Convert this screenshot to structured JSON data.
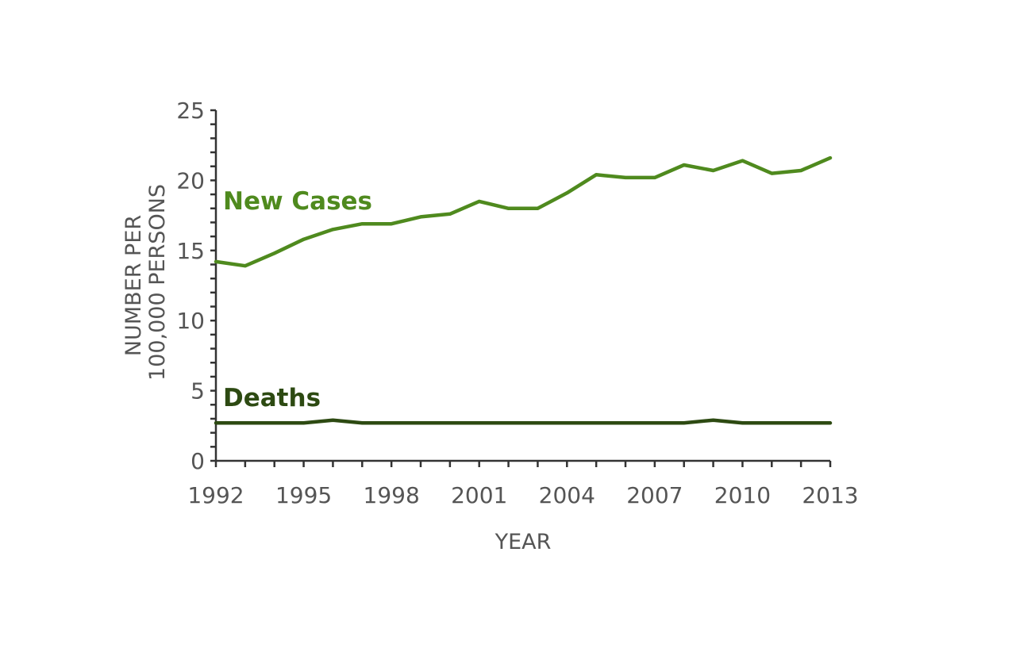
{
  "chart_data": {
    "type": "line",
    "title": "",
    "xlabel": "YEAR",
    "ylabel": [
      "NUMBER PER",
      "100,000 PERSONS"
    ],
    "x": [
      1992,
      1993,
      1994,
      1995,
      1996,
      1997,
      1998,
      1999,
      2000,
      2001,
      2002,
      2003,
      2004,
      2005,
      2006,
      2007,
      2008,
      2009,
      2010,
      2011,
      2012,
      2013
    ],
    "xticks": [
      1992,
      1995,
      1998,
      2001,
      2004,
      2007,
      2010,
      2013
    ],
    "yticks": [
      0,
      5,
      10,
      15,
      20,
      25
    ],
    "ylim": [
      0,
      25
    ],
    "xlim": [
      1992,
      2013
    ],
    "grid": false,
    "legend": "inline labels",
    "series": [
      {
        "name": "New Cases",
        "color": "#4f8a1e",
        "values": [
          14.2,
          13.9,
          14.8,
          15.8,
          16.5,
          16.9,
          16.9,
          17.4,
          17.6,
          18.5,
          18.0,
          18.0,
          19.1,
          20.4,
          20.2,
          20.2,
          21.1,
          20.7,
          21.4,
          20.5,
          20.7,
          21.6
        ]
      },
      {
        "name": "Deaths",
        "color": "#2d4a12",
        "values": [
          2.7,
          2.7,
          2.7,
          2.7,
          2.9,
          2.7,
          2.7,
          2.7,
          2.7,
          2.7,
          2.7,
          2.7,
          2.7,
          2.7,
          2.7,
          2.7,
          2.7,
          2.9,
          2.7,
          2.7,
          2.7,
          2.7
        ]
      }
    ]
  }
}
